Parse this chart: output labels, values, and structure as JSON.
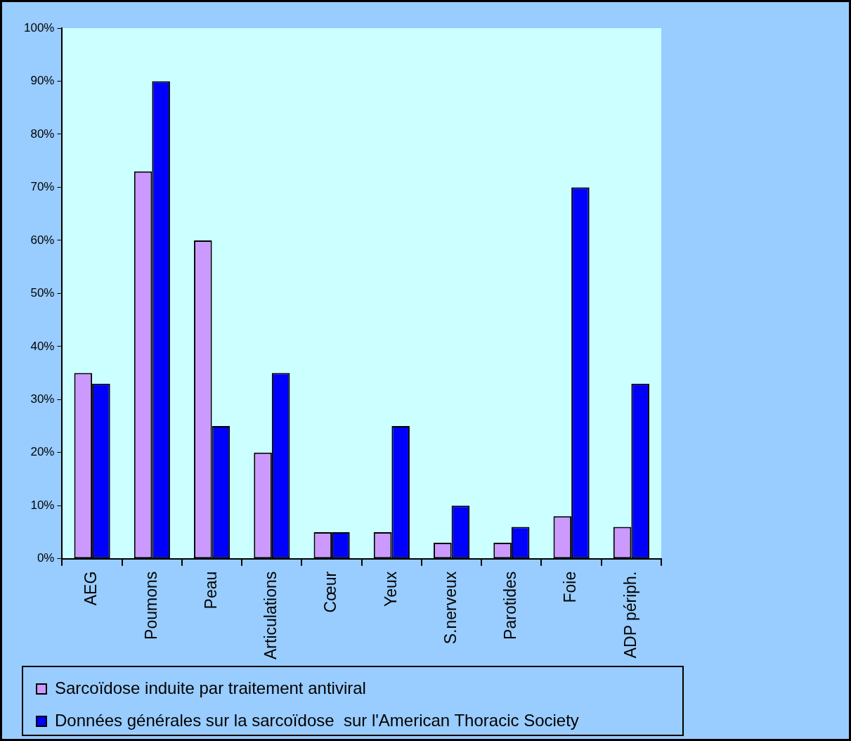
{
  "chart_data": {
    "type": "bar",
    "categories": [
      "AEG",
      "Poumons",
      "Peau",
      "Articulations",
      "Cœur",
      "Yeux",
      "S.nerveux",
      "Parotides",
      "Foie",
      "ADP périph."
    ],
    "series": [
      {
        "name": "Sarcoïdose induite par traitement antiviral",
        "color": "#cc99ff",
        "values": [
          35,
          73,
          60,
          20,
          5,
          5,
          3,
          3,
          8,
          6
        ]
      },
      {
        "name": "Données générales sur la sarcoïdose  sur l'American Thoracic Society",
        "color": "#0000ff",
        "values": [
          33,
          90,
          25,
          35,
          5,
          25,
          10,
          6,
          70,
          33
        ]
      }
    ],
    "ylim": [
      0,
      100
    ],
    "yticks": [
      {
        "value": 0,
        "label": "0%"
      },
      {
        "value": 10,
        "label": "10%"
      },
      {
        "value": 20,
        "label": "20%"
      },
      {
        "value": 30,
        "label": "30%"
      },
      {
        "value": 40,
        "label": "40%"
      },
      {
        "value": 50,
        "label": "50%"
      },
      {
        "value": 60,
        "label": "60%"
      },
      {
        "value": 70,
        "label": "70%"
      },
      {
        "value": 80,
        "label": "80%"
      },
      {
        "value": 90,
        "label": "90%"
      },
      {
        "value": 100,
        "label": "100%"
      }
    ],
    "grid": false,
    "legend": "bottom"
  }
}
